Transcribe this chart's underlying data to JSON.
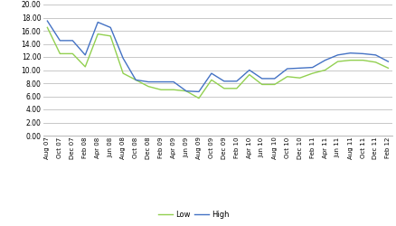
{
  "labels": [
    "Aug 07",
    "Oct 07",
    "Dec 07",
    "Feb 08",
    "Apr 08",
    "Jun 08",
    "Aug 08",
    "Oct 08",
    "Dec 08",
    "Feb 09",
    "Apr 09",
    "Jun 09",
    "Aug 09",
    "Oct 09",
    "Dec 09",
    "Feb 10",
    "Apr 10",
    "Jun 10",
    "Aug 10",
    "Oct 10",
    "Dec 10",
    "Feb 11",
    "Apr 11",
    "Jun 11",
    "Aug 11",
    "Oct 11",
    "Dec 11",
    "Feb 12"
  ],
  "low": [
    16.5,
    12.5,
    12.5,
    10.5,
    15.5,
    15.2,
    9.5,
    8.5,
    7.5,
    7.0,
    7.0,
    6.8,
    5.7,
    8.5,
    7.2,
    7.2,
    9.3,
    7.8,
    7.8,
    9.0,
    8.8,
    9.5,
    10.0,
    11.3,
    11.5,
    11.5,
    11.2,
    10.3
  ],
  "high": [
    17.5,
    14.5,
    14.5,
    12.3,
    17.3,
    16.5,
    11.8,
    8.5,
    8.2,
    8.2,
    8.2,
    6.8,
    6.7,
    9.5,
    8.3,
    8.3,
    10.0,
    8.7,
    8.7,
    10.2,
    10.3,
    10.4,
    11.5,
    12.3,
    12.6,
    12.5,
    12.3,
    11.3
  ],
  "low_color": "#92d050",
  "high_color": "#4472c4",
  "background_color": "#ffffff",
  "grid_color": "#c8c8c8",
  "ylim": [
    0.0,
    20.0
  ],
  "yticks": [
    0.0,
    2.0,
    4.0,
    6.0,
    8.0,
    10.0,
    12.0,
    14.0,
    16.0,
    18.0,
    20.0
  ]
}
